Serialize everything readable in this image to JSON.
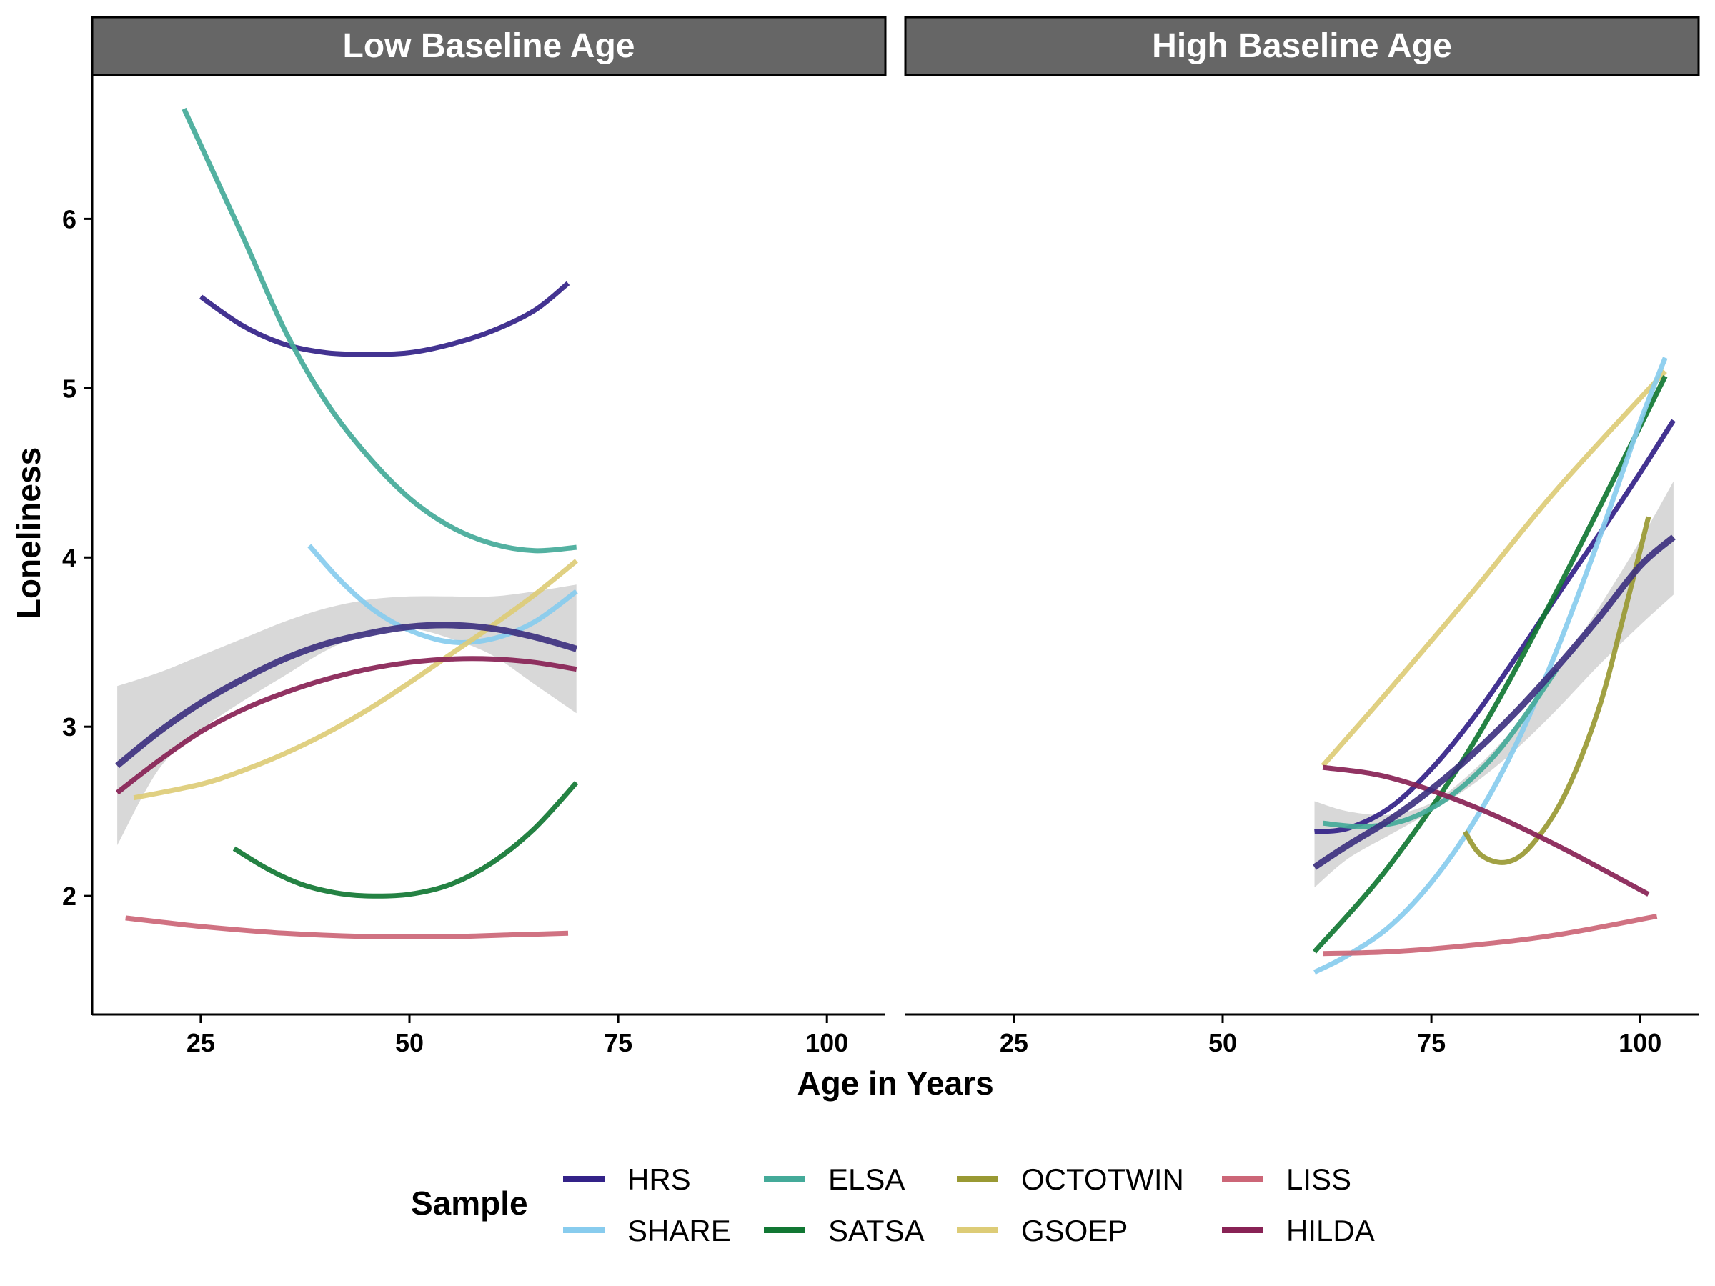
{
  "chart_data": {
    "type": "line",
    "ylabel": "Loneliness",
    "xlabel": "Age in Years",
    "legend_title": "Sample",
    "legend_position": "bottom",
    "grid": false,
    "xlim": [
      12,
      107
    ],
    "ylim": [
      1.3,
      6.85
    ],
    "x_ticks": [
      25,
      50,
      75,
      100
    ],
    "y_ticks": [
      2,
      3,
      4,
      5,
      6
    ],
    "colors": {
      "HRS": "#332288",
      "SHARE": "#88CCEE",
      "ELSA": "#44AA99",
      "SATSA": "#117733",
      "OCTOTWIN": "#999933",
      "GSOEP": "#DDCC77",
      "LISS": "#CC6677",
      "HILDA": "#882255",
      "pooled": "#3B2F7E",
      "ribbon": "#BEBEBE"
    },
    "legend": [
      {
        "name": "HRS",
        "series": "HRS"
      },
      {
        "name": "SHARE",
        "series": "SHARE"
      },
      {
        "name": "ELSA",
        "series": "ELSA"
      },
      {
        "name": "SATSA",
        "series": "SATSA"
      },
      {
        "name": "OCTOTWIN",
        "series": "OCTOTWIN"
      },
      {
        "name": "GSOEP",
        "series": "GSOEP"
      },
      {
        "name": "LISS",
        "series": "LISS"
      },
      {
        "name": "HILDA",
        "series": "HILDA"
      }
    ],
    "panels": [
      {
        "title": "Low Baseline Age",
        "ribbon": {
          "x": [
            15,
            20,
            25,
            30,
            35,
            40,
            45,
            50,
            55,
            60,
            65,
            70
          ],
          "lower": [
            2.3,
            2.75,
            2.98,
            3.15,
            3.3,
            3.45,
            3.55,
            3.58,
            3.52,
            3.42,
            3.25,
            3.08
          ],
          "upper": [
            3.24,
            3.32,
            3.42,
            3.52,
            3.62,
            3.7,
            3.75,
            3.77,
            3.77,
            3.77,
            3.8,
            3.84
          ]
        },
        "series": [
          {
            "name": "HRS",
            "x": [
              25,
              30,
              35,
              40,
              45,
              50,
              55,
              60,
              65,
              69
            ],
            "y": [
              5.54,
              5.37,
              5.26,
              5.21,
              5.2,
              5.21,
              5.26,
              5.34,
              5.46,
              5.62
            ]
          },
          {
            "name": "ELSA",
            "x": [
              23,
              30,
              35,
              40,
              45,
              50,
              55,
              60,
              65,
              70
            ],
            "y": [
              6.65,
              5.9,
              5.35,
              4.92,
              4.6,
              4.35,
              4.18,
              4.08,
              4.04,
              4.06
            ]
          },
          {
            "name": "SHARE",
            "x": [
              38,
              42,
              46,
              50,
              55,
              60,
              65,
              70
            ],
            "y": [
              4.07,
              3.85,
              3.68,
              3.57,
              3.5,
              3.52,
              3.62,
              3.8
            ]
          },
          {
            "name": "GSOEP",
            "x": [
              17,
              25,
              30,
              35,
              40,
              45,
              50,
              55,
              60,
              65,
              70
            ],
            "y": [
              2.58,
              2.66,
              2.74,
              2.84,
              2.96,
              3.1,
              3.26,
              3.43,
              3.6,
              3.78,
              3.98
            ]
          },
          {
            "name": "HILDA",
            "x": [
              15,
              20,
              25,
              30,
              35,
              40,
              45,
              50,
              55,
              60,
              65,
              70
            ],
            "y": [
              2.61,
              2.8,
              2.97,
              3.1,
              3.2,
              3.28,
              3.34,
              3.38,
              3.4,
              3.4,
              3.38,
              3.34
            ]
          },
          {
            "name": "SATSA",
            "x": [
              29,
              33,
              37,
              41,
              45,
              50,
              55,
              60,
              65,
              70
            ],
            "y": [
              2.28,
              2.16,
              2.07,
              2.02,
              2.0,
              2.01,
              2.07,
              2.2,
              2.4,
              2.67
            ]
          },
          {
            "name": "LISS",
            "x": [
              16,
              25,
              35,
              45,
              55,
              62,
              69
            ],
            "y": [
              1.87,
              1.82,
              1.78,
              1.76,
              1.76,
              1.77,
              1.78
            ]
          }
        ],
        "pooled": {
          "x": [
            15,
            20,
            25,
            30,
            35,
            40,
            45,
            50,
            55,
            60,
            65,
            70
          ],
          "y": [
            2.77,
            2.97,
            3.14,
            3.28,
            3.4,
            3.49,
            3.55,
            3.59,
            3.6,
            3.58,
            3.53,
            3.46
          ]
        }
      },
      {
        "title": "High Baseline Age",
        "ribbon": {
          "x": [
            61,
            65,
            70,
            75,
            80,
            85,
            90,
            95,
            100,
            104
          ],
          "lower": [
            2.05,
            2.22,
            2.36,
            2.5,
            2.66,
            2.86,
            3.1,
            3.36,
            3.6,
            3.78
          ],
          "upper": [
            2.56,
            2.5,
            2.48,
            2.55,
            2.74,
            3.0,
            3.33,
            3.7,
            4.1,
            4.45
          ]
        },
        "series": [
          {
            "name": "GSOEP",
            "x": [
              62,
              70,
              80,
              90,
              103
            ],
            "y": [
              2.77,
              3.22,
              3.8,
              4.4,
              5.1
            ]
          },
          {
            "name": "HRS",
            "x": [
              61,
              65,
              70,
              75,
              80,
              85,
              90,
              95,
              100,
              104
            ],
            "y": [
              2.38,
              2.4,
              2.52,
              2.75,
              3.05,
              3.4,
              3.77,
              4.13,
              4.5,
              4.81
            ]
          },
          {
            "name": "SATSA",
            "x": [
              61,
              70,
              80,
              90,
              103
            ],
            "y": [
              1.67,
              2.18,
              2.9,
              3.8,
              5.07
            ]
          },
          {
            "name": "SHARE",
            "x": [
              61,
              65,
              70,
              75,
              80,
              85,
              90,
              95,
              100,
              103
            ],
            "y": [
              1.55,
              1.65,
              1.82,
              2.08,
              2.43,
              2.88,
              3.45,
              4.1,
              4.8,
              5.18
            ]
          },
          {
            "name": "ELSA",
            "x": [
              62,
              67,
              72,
              77,
              82,
              86,
              90
            ],
            "y": [
              2.43,
              2.41,
              2.45,
              2.58,
              2.8,
              3.05,
              3.34
            ]
          },
          {
            "name": "OCTOTWIN",
            "x": [
              79,
              81,
              84,
              87,
              91,
              95,
              98,
              101
            ],
            "y": [
              2.38,
              2.24,
              2.2,
              2.3,
              2.6,
              3.1,
              3.65,
              4.24
            ]
          },
          {
            "name": "HILDA",
            "x": [
              62,
              70,
              80,
              90,
              101
            ],
            "y": [
              2.76,
              2.7,
              2.53,
              2.3,
              2.01
            ]
          },
          {
            "name": "LISS",
            "x": [
              62,
              70,
              80,
              90,
              102
            ],
            "y": [
              1.66,
              1.67,
              1.71,
              1.77,
              1.88
            ]
          }
        ],
        "pooled": {
          "x": [
            61,
            65,
            70,
            75,
            80,
            85,
            90,
            95,
            100,
            104
          ],
          "y": [
            2.17,
            2.3,
            2.45,
            2.63,
            2.84,
            3.08,
            3.35,
            3.64,
            3.95,
            4.12
          ]
        }
      }
    ]
  }
}
